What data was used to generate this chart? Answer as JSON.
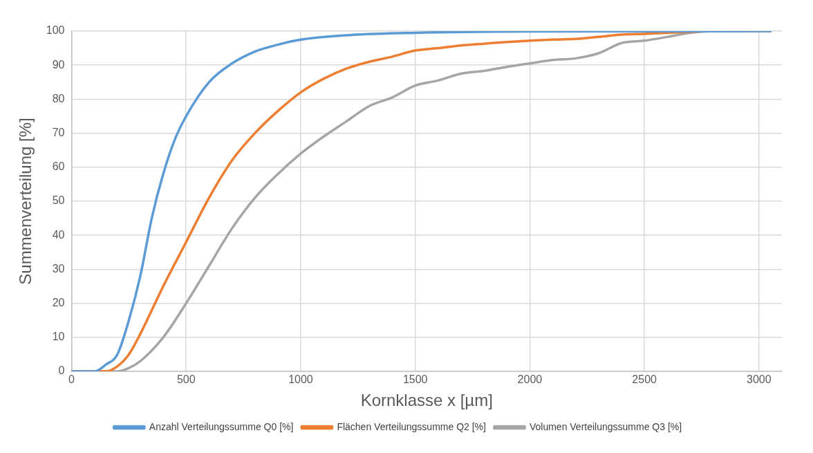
{
  "chart_data": {
    "type": "line",
    "xlabel": "Kornklasse x [µm]",
    "ylabel": "Summenverteilung [%]",
    "xlim": [
      0,
      3100
    ],
    "xticks": [
      0,
      500,
      1000,
      1500,
      2000,
      2500,
      3000
    ],
    "ylim": [
      0,
      100
    ],
    "yticks": [
      0,
      10,
      20,
      30,
      40,
      50,
      60,
      70,
      80,
      90,
      100
    ],
    "grid": true,
    "legend": "bottom",
    "marker": "none",
    "line_style": "solid",
    "series": [
      {
        "name": "Anzahl Verteilungssumme Q0 [%]",
        "color": "#5b9bd5",
        "x": [
          0,
          100,
          150,
          200,
          250,
          300,
          350,
          400,
          450,
          500,
          600,
          700,
          800,
          900,
          1000,
          1200,
          1500,
          2000,
          3050
        ],
        "values": [
          0,
          0,
          2,
          5,
          15,
          28,
          45,
          58,
          68,
          75,
          85,
          90.5,
          94,
          96,
          97.5,
          98.8,
          99.5,
          99.9,
          100
        ]
      },
      {
        "name": "Flächen Verteilungssumme Q2 [%]",
        "color": "#ed7d31",
        "x": [
          0,
          150,
          200,
          250,
          300,
          400,
          500,
          600,
          700,
          800,
          900,
          1000,
          1100,
          1200,
          1300,
          1400,
          1500,
          1600,
          1700,
          1800,
          1900,
          2000,
          2100,
          2200,
          2300,
          2400,
          2500,
          2600,
          2700,
          2800,
          3050
        ],
        "values": [
          0,
          0,
          1.5,
          5,
          11,
          25,
          38,
          51,
          62,
          70,
          76.5,
          82,
          86,
          89,
          91,
          92.5,
          94.3,
          95,
          95.8,
          96.3,
          96.8,
          97.2,
          97.5,
          97.7,
          98.3,
          99,
          99.2,
          99.5,
          99.8,
          100,
          100
        ]
      },
      {
        "name": "Volumen Verteilungssumme Q3 [%]",
        "color": "#a5a5a5",
        "x": [
          0,
          200,
          250,
          300,
          400,
          500,
          600,
          700,
          800,
          900,
          1000,
          1100,
          1200,
          1300,
          1400,
          1500,
          1600,
          1700,
          1800,
          1900,
          2000,
          2100,
          2200,
          2300,
          2400,
          2500,
          2600,
          2700,
          2800,
          3050
        ],
        "values": [
          0,
          0,
          1,
          3,
          10,
          20,
          31,
          42,
          51,
          58,
          64,
          69,
          73.5,
          78,
          80.5,
          84,
          85.5,
          87.5,
          88.3,
          89.5,
          90.5,
          91.5,
          92,
          93.5,
          96.5,
          97.2,
          98.3,
          99.5,
          100,
          100
        ]
      }
    ]
  }
}
